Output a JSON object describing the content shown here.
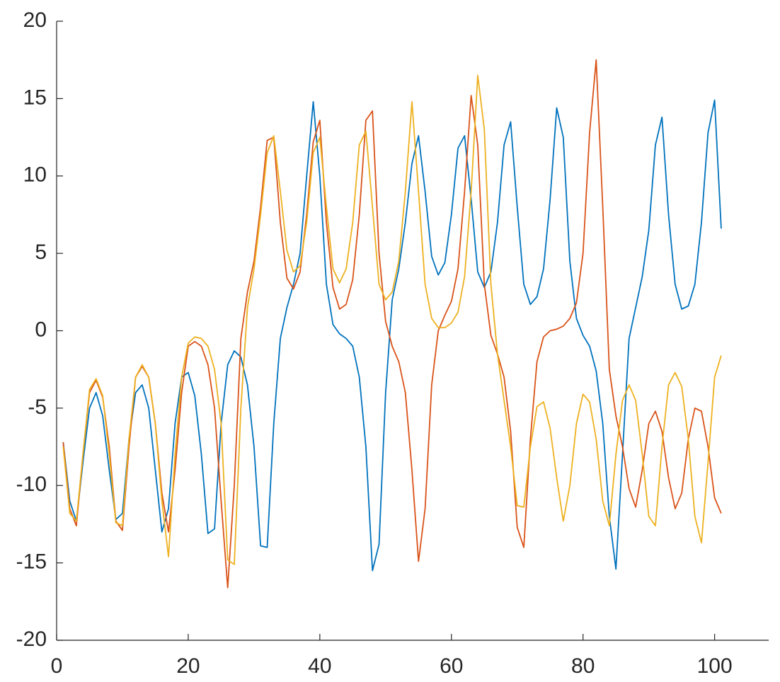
{
  "chart_data": {
    "type": "line",
    "x": [
      1,
      2,
      3,
      4,
      5,
      6,
      7,
      8,
      9,
      10,
      11,
      12,
      13,
      14,
      15,
      16,
      17,
      18,
      19,
      20,
      21,
      22,
      23,
      24,
      25,
      26,
      27,
      28,
      29,
      30,
      31,
      32,
      33,
      34,
      35,
      36,
      37,
      38,
      39,
      40,
      41,
      42,
      43,
      44,
      45,
      46,
      47,
      48,
      49,
      50,
      51,
      52,
      53,
      54,
      55,
      56,
      57,
      58,
      59,
      60,
      61,
      62,
      63,
      64,
      65,
      66,
      67,
      68,
      69,
      70,
      71,
      72,
      73,
      74,
      75,
      76,
      77,
      78,
      79,
      80,
      81,
      82,
      83,
      84,
      85,
      86,
      87,
      88,
      89,
      90,
      91,
      92,
      93,
      94,
      95,
      96,
      97,
      98,
      99,
      100,
      101
    ],
    "series": [
      {
        "color": "#0072BD",
        "values": [
          -7.2,
          -11,
          -12.3,
          -8.5,
          -5,
          -4,
          -5.5,
          -9,
          -12.2,
          -11.8,
          -7,
          -4,
          -3.5,
          -5,
          -9,
          -13,
          -11.5,
          -6,
          -3,
          -2.7,
          -4.2,
          -8,
          -13.1,
          -12.8,
          -6,
          -2.2,
          -1.3,
          -1.7,
          -3.5,
          -7.5,
          -13.9,
          -14,
          -6,
          -0.5,
          1.5,
          3,
          5,
          10,
          14.8,
          10,
          3,
          0.4,
          -0.2,
          -0.5,
          -1,
          -3,
          -7.5,
          -15.5,
          -13.8,
          -4,
          2,
          4,
          7,
          10.8,
          12.6,
          9,
          4.8,
          3.6,
          4.4,
          7.5,
          11.8,
          12.6,
          8.5,
          3.8,
          2.8,
          3.8,
          7,
          12,
          13.5,
          8,
          3,
          1.7,
          2.2,
          4,
          8.5,
          14.4,
          12.5,
          4.5,
          0.8,
          -0.3,
          -1,
          -2.6,
          -6,
          -12,
          -15.4,
          -8,
          -0.5,
          1.5,
          3.5,
          6.5,
          12,
          13.8,
          7.5,
          3,
          1.4,
          1.6,
          3,
          7,
          12.8,
          14.9,
          6.6
        ]
      },
      {
        "color": "#D95319",
        "values": [
          -7.2,
          -11.5,
          -12.6,
          -8,
          -4,
          -3.2,
          -4.3,
          -7.5,
          -12.3,
          -12.9,
          -7.5,
          -3,
          -2.3,
          -3,
          -6,
          -10.5,
          -13,
          -9,
          -4,
          -1,
          -0.7,
          -1,
          -2.2,
          -5,
          -11,
          -16.6,
          -10,
          -0.5,
          2.5,
          4.5,
          8,
          12.3,
          12.5,
          7,
          3.4,
          2.7,
          3.8,
          7.5,
          12.2,
          13.6,
          7,
          2.8,
          1.4,
          1.7,
          3.3,
          7.5,
          13.6,
          14.2,
          5,
          0.6,
          -1,
          -2,
          -4,
          -9,
          -14.9,
          -11.5,
          -3.5,
          0,
          1,
          1.9,
          4,
          9,
          15.2,
          12,
          3,
          -0.3,
          -1.5,
          -3,
          -6.5,
          -12.7,
          -14,
          -7,
          -2,
          -0.4,
          0,
          0.1,
          0.3,
          0.8,
          1.8,
          5,
          12.8,
          17.5,
          8,
          -2.5,
          -5.5,
          -7.5,
          -10.2,
          -11.4,
          -9,
          -6,
          -5.2,
          -6.5,
          -9.5,
          -11.5,
          -10.5,
          -7,
          -5,
          -5.2,
          -7.5,
          -10.8,
          -11.8
        ]
      },
      {
        "color": "#EDB120",
        "values": [
          -7.5,
          -11.8,
          -12.3,
          -8,
          -3.8,
          -3.1,
          -4.2,
          -8,
          -12.4,
          -12.6,
          -7,
          -3,
          -2.2,
          -3,
          -6,
          -11,
          -14.6,
          -8,
          -3,
          -0.8,
          -0.4,
          -0.5,
          -1,
          -2.5,
          -6,
          -14.8,
          -15.1,
          -5,
          1.5,
          4,
          7.5,
          11.5,
          12.6,
          9,
          5.2,
          3.8,
          4.2,
          7,
          11.5,
          12.5,
          8,
          4,
          3.1,
          4,
          7,
          12,
          12.9,
          8,
          3,
          2,
          2.5,
          4.5,
          9,
          14.8,
          9,
          3,
          0.8,
          0.2,
          0.2,
          0.5,
          1.2,
          3.5,
          9,
          16.5,
          13,
          3,
          -1.5,
          -4.5,
          -7.5,
          -11.3,
          -11.4,
          -7.5,
          -4.9,
          -4.6,
          -6.3,
          -9.5,
          -12.3,
          -10,
          -6,
          -4.1,
          -4.6,
          -7,
          -11,
          -12.6,
          -8,
          -4.5,
          -3.5,
          -4.5,
          -8,
          -12,
          -12.6,
          -7.5,
          -3.5,
          -2.7,
          -3.6,
          -7,
          -12,
          -13.7,
          -8.5,
          -3,
          -1.6
        ]
      }
    ],
    "xlim": [
      0,
      108
    ],
    "xticks": [
      0,
      20,
      40,
      60,
      80,
      100
    ],
    "ylim": [
      -20,
      20
    ],
    "yticks": [
      -20,
      -15,
      -10,
      -5,
      0,
      5,
      10,
      15,
      20
    ]
  }
}
